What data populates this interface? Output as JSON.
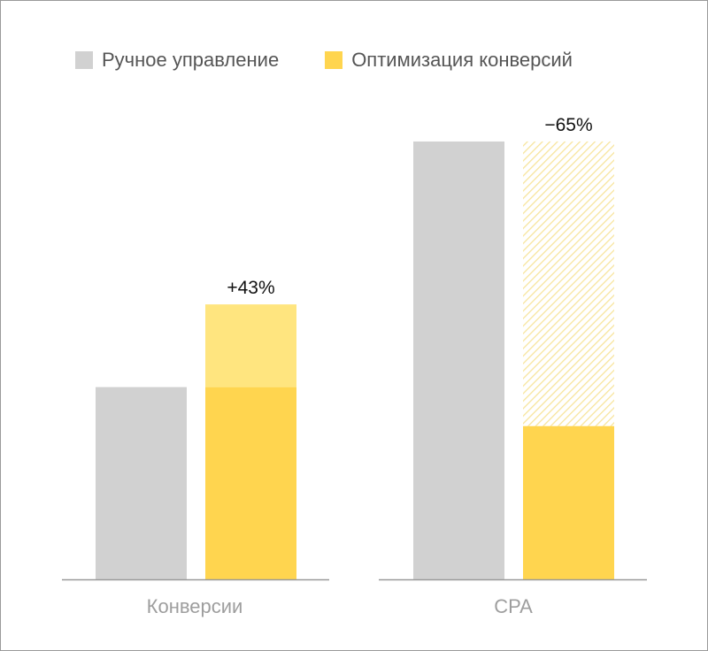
{
  "legend": {
    "manual": {
      "label": "Ручное управление",
      "color": "#d1d1d1"
    },
    "optimization": {
      "label": "Оптимизация конверсий",
      "color": "#ffd54f"
    }
  },
  "colors": {
    "gain": "#ffe57f",
    "reduction_hatch": "#f7e49a",
    "axis": "#999999"
  },
  "chart_data": [
    {
      "type": "bar",
      "category": "Конверсии",
      "manual": 100,
      "optimization": 143,
      "change_label": "+43%",
      "ylim": [
        0,
        230
      ]
    },
    {
      "type": "bar",
      "category": "CPA",
      "manual": 100,
      "optimization": 35,
      "change_label": "−65%",
      "ylim": [
        0,
        101
      ]
    }
  ]
}
